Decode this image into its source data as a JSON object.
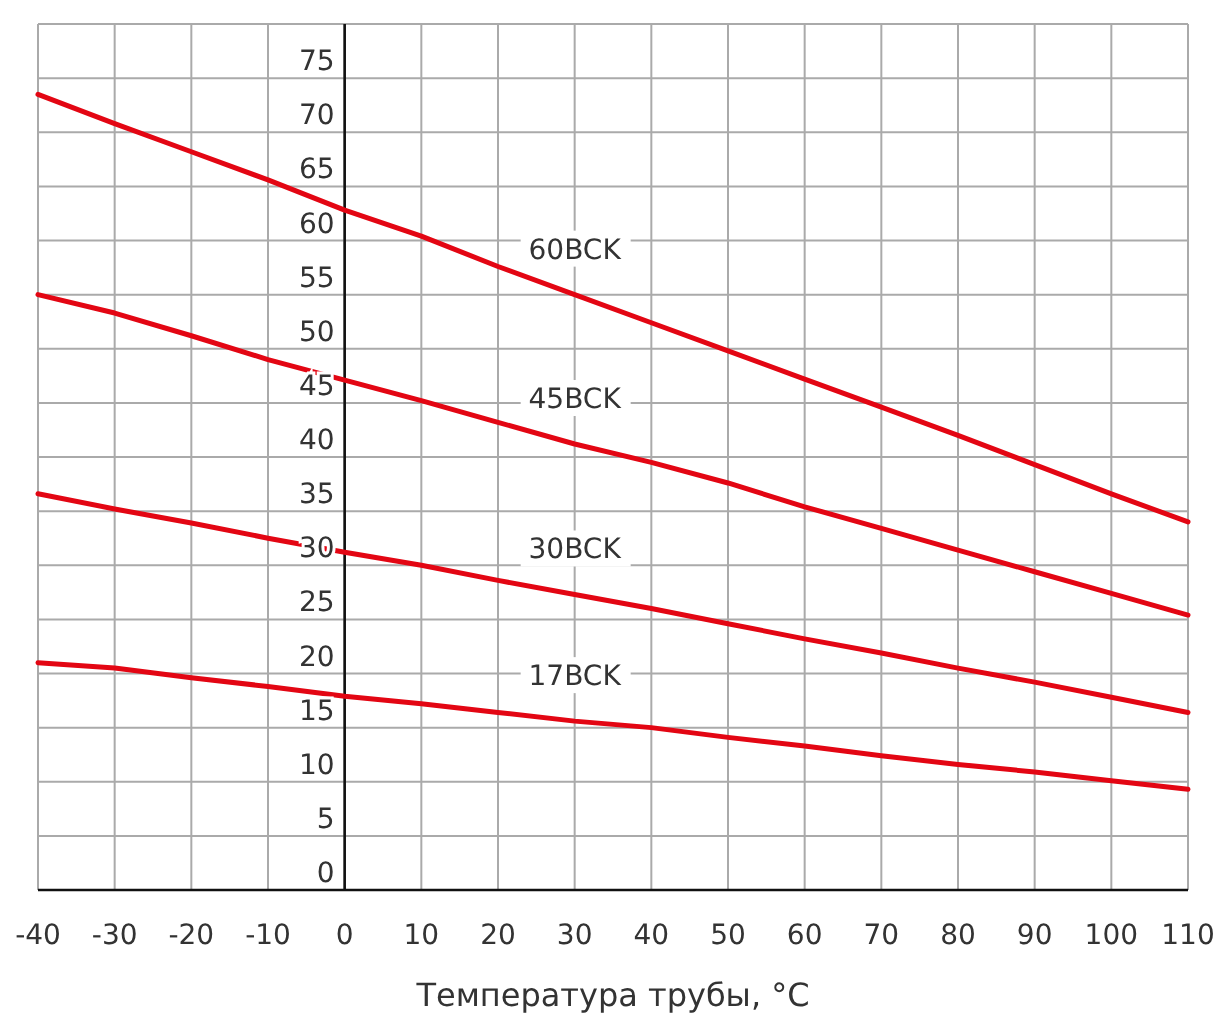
{
  "chart_data": {
    "type": "line",
    "xlabel": "Температура трубы, °C",
    "x": [
      -40,
      -30,
      -20,
      -10,
      0,
      10,
      20,
      30,
      40,
      50,
      60,
      70,
      80,
      90,
      100,
      110
    ],
    "series": [
      {
        "name": "60BCK",
        "color": "#e30613",
        "values": [
          73.5,
          70.8,
          68.2,
          65.6,
          62.8,
          60.4,
          57.6,
          55.0,
          52.4,
          49.8,
          47.2,
          44.6,
          42.0,
          39.3,
          36.6,
          34.0
        ]
      },
      {
        "name": "45BCK",
        "color": "#e30613",
        "values": [
          55.0,
          53.3,
          51.2,
          49.0,
          47.1,
          45.2,
          43.2,
          41.2,
          39.5,
          37.6,
          35.4,
          33.4,
          31.4,
          29.4,
          27.4,
          25.4
        ]
      },
      {
        "name": "30BCK",
        "color": "#e30613",
        "values": [
          36.6,
          35.2,
          33.9,
          32.5,
          31.2,
          30.0,
          28.6,
          27.3,
          26.0,
          24.6,
          23.2,
          21.9,
          20.5,
          19.2,
          17.8,
          16.4
        ]
      },
      {
        "name": "17BCK",
        "color": "#e30613",
        "values": [
          21.0,
          20.5,
          19.6,
          18.8,
          17.9,
          17.2,
          16.4,
          15.6,
          15.0,
          14.1,
          13.3,
          12.4,
          11.6,
          10.9,
          10.1,
          9.3
        ]
      }
    ],
    "xlim": [
      -40,
      110
    ],
    "xticks": [
      -40,
      -30,
      -20,
      -10,
      0,
      10,
      20,
      30,
      40,
      50,
      60,
      70,
      80,
      90,
      100,
      110
    ],
    "ylim": [
      0,
      80
    ],
    "yticks": [
      0,
      5,
      10,
      15,
      20,
      25,
      30,
      35,
      40,
      45,
      50,
      55,
      60,
      65,
      70,
      75
    ],
    "grid": true,
    "marker": "none",
    "line_style": "solid"
  }
}
